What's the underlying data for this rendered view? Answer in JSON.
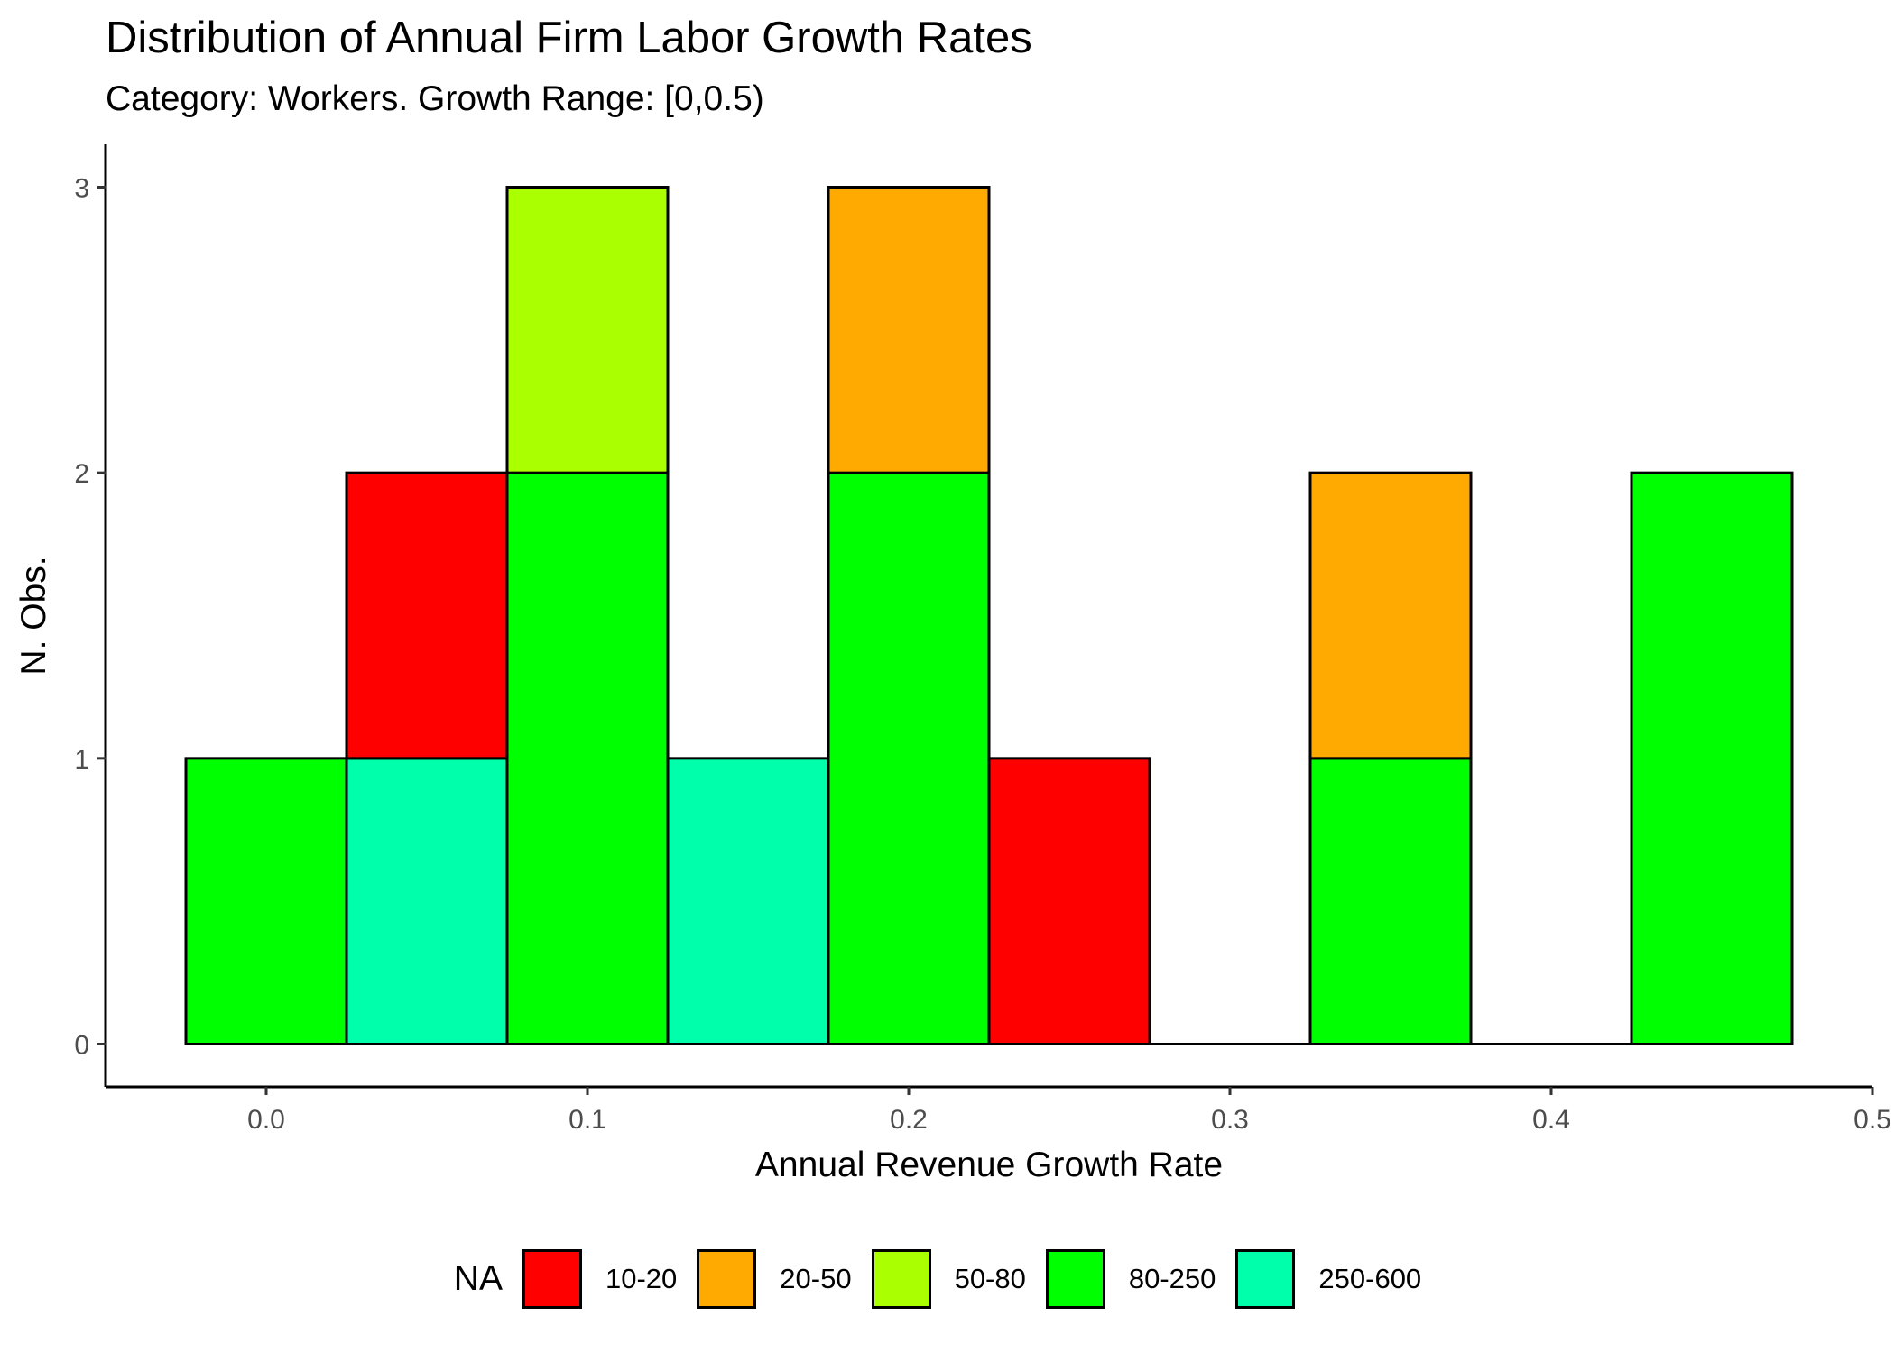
{
  "chart_data": {
    "type": "bar",
    "subtype": "stacked-histogram",
    "title": "Distribution of Annual Firm Labor Growth Rates",
    "subtitle": "Category: Workers. Growth Range: [0,0.5)",
    "xlabel": "Annual Revenue Growth Rate",
    "ylabel": "N. Obs.",
    "xlim": [
      -0.05,
      0.5
    ],
    "ylim": [
      -0.15,
      3.15
    ],
    "x_ticks": [
      0.0,
      0.1,
      0.2,
      0.3,
      0.4,
      0.5
    ],
    "x_tick_labels": [
      "0.0",
      "0.1",
      "0.2",
      "0.3",
      "0.4",
      "0.5"
    ],
    "y_ticks": [
      0,
      1,
      2,
      3
    ],
    "y_tick_labels": [
      "0",
      "1",
      "2",
      "3"
    ],
    "bin_width": 0.05,
    "bin_centers": [
      0.0,
      0.05,
      0.1,
      0.15,
      0.2,
      0.25,
      0.3,
      0.35,
      0.4,
      0.45
    ],
    "series": [
      {
        "name": "10-20",
        "color": "#FF0000",
        "values": [
          0,
          1,
          0,
          0,
          0,
          1,
          0,
          0,
          0,
          0
        ]
      },
      {
        "name": "20-50",
        "color": "#FFAA00",
        "values": [
          0,
          0,
          0,
          0,
          1,
          0,
          0,
          1,
          0,
          0
        ]
      },
      {
        "name": "50-80",
        "color": "#AAFF00",
        "values": [
          0,
          0,
          1,
          0,
          0,
          0,
          0,
          0,
          0,
          0
        ]
      },
      {
        "name": "80-250",
        "color": "#00FF00",
        "values": [
          1,
          0,
          2,
          0,
          2,
          0,
          0,
          1,
          0,
          2
        ]
      },
      {
        "name": "250-600",
        "color": "#00FFAA",
        "values": [
          0,
          1,
          0,
          1,
          0,
          0,
          0,
          0,
          0,
          0
        ]
      }
    ],
    "legend": {
      "title": "NA",
      "position": "bottom"
    },
    "grid": false,
    "bar_outline_color": "#000000"
  }
}
